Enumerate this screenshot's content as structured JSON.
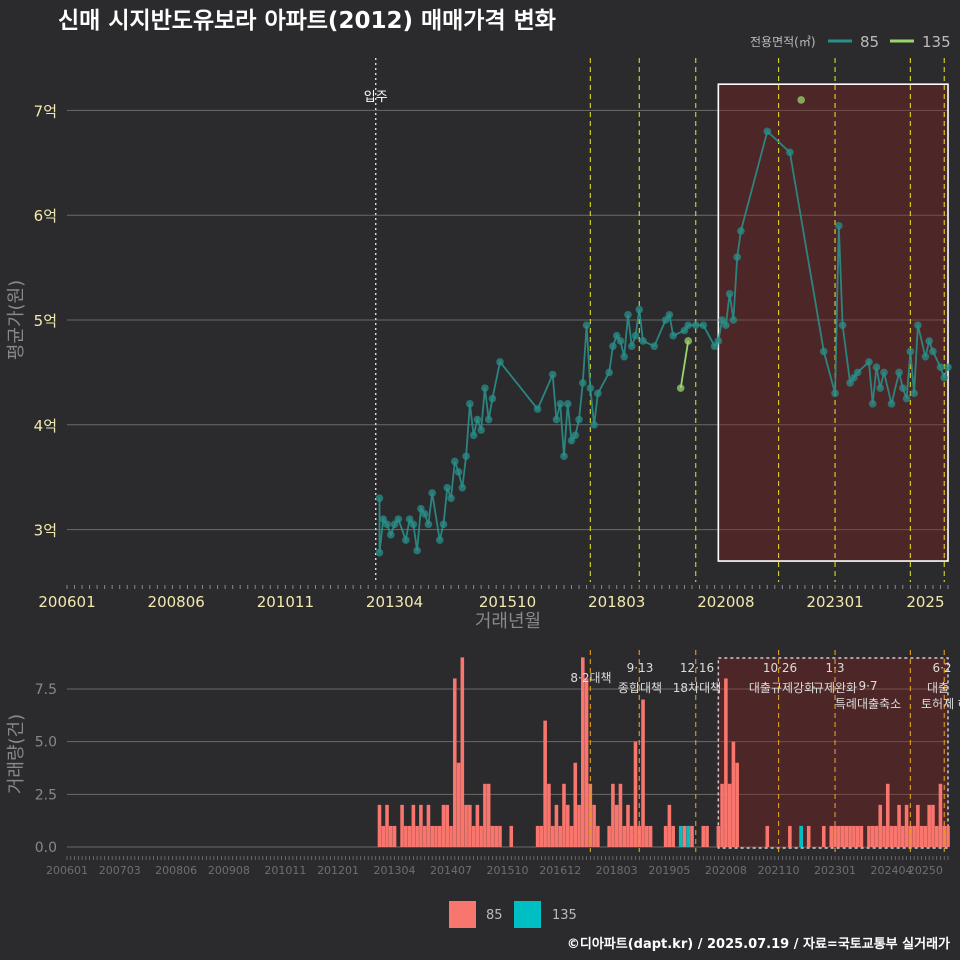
{
  "title": "신매 시지반도유보라 아파트(2012) 매매가격 변화",
  "legend": {
    "title": "전용면적(㎡)",
    "items": [
      {
        "label": "85",
        "color": "#2a8f8a"
      },
      {
        "label": "135",
        "color": "#9ad56a"
      }
    ]
  },
  "bottom_legend": {
    "items": [
      {
        "label": "85",
        "color": "#f8766d"
      },
      {
        "label": "135",
        "color": "#00bfc4"
      }
    ]
  },
  "footer": "©디아파트(dapt.kr) / 2025.07.19 / 자료=국토교통부 실거래가",
  "chart_data": [
    {
      "type": "line",
      "name": "price",
      "ylabel": "평균가(원)",
      "xlabel": "거래년월",
      "ylim": [
        2.5,
        7.5
      ],
      "yticks": [
        3,
        4,
        5,
        6,
        7
      ],
      "ytick_labels": [
        "3억",
        "4억",
        "5억",
        "6억",
        "7억"
      ],
      "xticks": [
        "200601",
        "200806",
        "201011",
        "201304",
        "201510",
        "201803",
        "202008",
        "202301",
        "2025"
      ],
      "grid": true,
      "movein": {
        "x": "2012-11",
        "label": "입주"
      },
      "policy_lines": [
        "2017-08",
        "2018-09",
        "2019-12",
        "2021-10",
        "2023-01",
        "2024-09",
        "2025-06"
      ],
      "highlight_box": {
        "from": "2020-06",
        "to": "2025-07",
        "ymin": 2.7,
        "ymax": 7.25
      },
      "series": [
        {
          "name": "85",
          "color": "#2a8f8a",
          "points": [
            [
              "2012-12",
              3.3
            ],
            [
              "2012-12",
              2.78
            ],
            [
              "2013-01",
              3.1
            ],
            [
              "2013-02",
              3.05
            ],
            [
              "2013-03",
              2.95
            ],
            [
              "2013-04",
              3.05
            ],
            [
              "2013-05",
              3.1
            ],
            [
              "2013-07",
              2.9
            ],
            [
              "2013-08",
              3.1
            ],
            [
              "2013-09",
              3.05
            ],
            [
              "2013-10",
              2.8
            ],
            [
              "2013-11",
              3.2
            ],
            [
              "2013-12",
              3.15
            ],
            [
              "2014-01",
              3.05
            ],
            [
              "2014-02",
              3.35
            ],
            [
              "2014-04",
              2.9
            ],
            [
              "2014-05",
              3.05
            ],
            [
              "2014-06",
              3.4
            ],
            [
              "2014-07",
              3.3
            ],
            [
              "2014-08",
              3.65
            ],
            [
              "2014-09",
              3.55
            ],
            [
              "2014-10",
              3.4
            ],
            [
              "2014-11",
              3.7
            ],
            [
              "2014-12",
              4.2
            ],
            [
              "2015-01",
              3.9
            ],
            [
              "2015-02",
              4.05
            ],
            [
              "2015-03",
              3.95
            ],
            [
              "2015-04",
              4.35
            ],
            [
              "2015-05",
              4.05
            ],
            [
              "2015-06",
              4.25
            ],
            [
              "2015-08",
              4.6
            ],
            [
              "2016-06",
              4.15
            ],
            [
              "2016-10",
              4.48
            ],
            [
              "2016-11",
              4.05
            ],
            [
              "2016-12",
              4.2
            ],
            [
              "2017-01",
              3.7
            ],
            [
              "2017-02",
              4.2
            ],
            [
              "2017-03",
              3.85
            ],
            [
              "2017-04",
              3.9
            ],
            [
              "2017-05",
              4.05
            ],
            [
              "2017-06",
              4.4
            ],
            [
              "2017-07",
              4.95
            ],
            [
              "2017-08",
              4.35
            ],
            [
              "2017-09",
              4.0
            ],
            [
              "2017-10",
              4.3
            ],
            [
              "2018-01",
              4.5
            ],
            [
              "2018-02",
              4.75
            ],
            [
              "2018-03",
              4.85
            ],
            [
              "2018-04",
              4.8
            ],
            [
              "2018-05",
              4.65
            ],
            [
              "2018-06",
              5.05
            ],
            [
              "2018-07",
              4.75
            ],
            [
              "2018-08",
              4.85
            ],
            [
              "2018-09",
              5.1
            ],
            [
              "2018-10",
              4.8
            ],
            [
              "2019-01",
              4.75
            ],
            [
              "2019-04",
              5.0
            ],
            [
              "2019-05",
              5.05
            ],
            [
              "2019-06",
              4.85
            ],
            [
              "2019-09",
              4.9
            ],
            [
              "2019-10",
              4.95
            ],
            [
              "2019-12",
              4.95
            ],
            [
              "2020-02",
              4.95
            ],
            [
              "2020-05",
              4.75
            ],
            [
              "2020-06",
              4.8
            ],
            [
              "2020-07",
              5.0
            ],
            [
              "2020-08",
              4.95
            ],
            [
              "2020-09",
              5.25
            ],
            [
              "2020-10",
              5.0
            ],
            [
              "2020-11",
              5.6
            ],
            [
              "2020-12",
              5.85
            ],
            [
              "2021-07",
              6.8
            ],
            [
              "2022-01",
              6.6
            ],
            [
              "2022-10",
              4.7
            ],
            [
              "2023-01",
              4.3
            ],
            [
              "2023-02",
              5.9
            ],
            [
              "2023-03",
              4.95
            ],
            [
              "2023-05",
              4.4
            ],
            [
              "2023-06",
              4.45
            ],
            [
              "2023-07",
              4.5
            ],
            [
              "2023-10",
              4.6
            ],
            [
              "2023-11",
              4.2
            ],
            [
              "2023-12",
              4.55
            ],
            [
              "2024-01",
              4.35
            ],
            [
              "2024-02",
              4.5
            ],
            [
              "2024-04",
              4.2
            ],
            [
              "2024-06",
              4.5
            ],
            [
              "2024-07",
              4.35
            ],
            [
              "2024-08",
              4.25
            ],
            [
              "2024-09",
              4.7
            ],
            [
              "2024-10",
              4.3
            ],
            [
              "2024-11",
              4.95
            ],
            [
              "2025-01",
              4.65
            ],
            [
              "2025-02",
              4.8
            ],
            [
              "2025-03",
              4.7
            ],
            [
              "2025-05",
              4.55
            ],
            [
              "2025-06",
              4.45
            ],
            [
              "2025-07",
              4.55
            ]
          ]
        },
        {
          "name": "135",
          "color": "#9ad56a",
          "points": [
            [
              "2019-08",
              4.35
            ],
            [
              "2019-10",
              4.8
            ],
            [
              "2022-04",
              7.1
            ]
          ]
        }
      ]
    },
    {
      "type": "bar",
      "name": "volume",
      "ylabel": "거래량(건)",
      "ylim": [
        0,
        9
      ],
      "yticks": [
        0,
        2.5,
        5,
        7.5
      ],
      "ytick_labels": [
        "0.0",
        "2.5",
        "5.0",
        "7.5"
      ],
      "xticks": [
        "200601",
        "200703",
        "200806",
        "200908",
        "201011",
        "201201",
        "201304",
        "201407",
        "201510",
        "201612",
        "201803",
        "201905",
        "202008",
        "202110",
        "202301",
        "202404",
        "20250"
      ],
      "policy_annotations": [
        {
          "x": "2017-08",
          "date": "8·2",
          "label": "대책"
        },
        {
          "x": "2018-09",
          "date": "9·13",
          "label": "종합대책"
        },
        {
          "x": "2019-12",
          "date": "12·16",
          "label": "18차대책"
        },
        {
          "x": "2021-10",
          "date": "10·26",
          "label": "대출규제강화"
        },
        {
          "x": "2023-01",
          "date": "1·3",
          "label": "규제완화"
        },
        {
          "x": "2024-09",
          "date": "9·7",
          "label": "특례대출축소"
        },
        {
          "x": "2025-06",
          "date": "6·2",
          "label": "대출"
        },
        {
          "x": "2025-07",
          "date": "",
          "label": "토허제 해"
        }
      ],
      "series": [
        {
          "name": "85",
          "color": "#f8766d",
          "bars": [
            [
              "2012-12",
              2
            ],
            [
              "2013-01",
              1
            ],
            [
              "2013-02",
              2
            ],
            [
              "2013-03",
              1
            ],
            [
              "2013-04",
              1
            ],
            [
              "2013-06",
              2
            ],
            [
              "2013-07",
              1
            ],
            [
              "2013-08",
              1
            ],
            [
              "2013-09",
              2
            ],
            [
              "2013-10",
              1
            ],
            [
              "2013-11",
              2
            ],
            [
              "2013-12",
              1
            ],
            [
              "2014-01",
              2
            ],
            [
              "2014-02",
              1
            ],
            [
              "2014-03",
              1
            ],
            [
              "2014-04",
              1
            ],
            [
              "2014-05",
              2
            ],
            [
              "2014-06",
              2
            ],
            [
              "2014-07",
              1
            ],
            [
              "2014-08",
              8
            ],
            [
              "2014-09",
              4
            ],
            [
              "2014-10",
              9
            ],
            [
              "2014-11",
              2
            ],
            [
              "2014-12",
              2
            ],
            [
              "2015-01",
              1
            ],
            [
              "2015-02",
              2
            ],
            [
              "2015-03",
              1
            ],
            [
              "2015-04",
              3
            ],
            [
              "2015-05",
              3
            ],
            [
              "2015-06",
              1
            ],
            [
              "2015-07",
              1
            ],
            [
              "2015-08",
              1
            ],
            [
              "2015-11",
              1
            ],
            [
              "2016-06",
              1
            ],
            [
              "2016-07",
              1
            ],
            [
              "2016-08",
              6
            ],
            [
              "2016-09",
              3
            ],
            [
              "2016-10",
              1
            ],
            [
              "2016-11",
              2
            ],
            [
              "2016-12",
              1
            ],
            [
              "2017-01",
              3
            ],
            [
              "2017-02",
              2
            ],
            [
              "2017-03",
              1
            ],
            [
              "2017-04",
              4
            ],
            [
              "2017-05",
              2
            ],
            [
              "2017-06",
              9
            ],
            [
              "2017-07",
              8
            ],
            [
              "2017-08",
              3
            ],
            [
              "2017-09",
              2
            ],
            [
              "2017-10",
              1
            ],
            [
              "2018-01",
              1
            ],
            [
              "2018-02",
              3
            ],
            [
              "2018-03",
              2
            ],
            [
              "2018-04",
              3
            ],
            [
              "2018-05",
              1
            ],
            [
              "2018-06",
              2
            ],
            [
              "2018-07",
              1
            ],
            [
              "2018-08",
              5
            ],
            [
              "2018-09",
              1
            ],
            [
              "2018-10",
              7
            ],
            [
              "2018-11",
              1
            ],
            [
              "2018-12",
              1
            ],
            [
              "2019-04",
              1
            ],
            [
              "2019-05",
              2
            ],
            [
              "2019-06",
              1
            ],
            [
              "2019-09",
              1
            ],
            [
              "2019-11",
              1
            ],
            [
              "2020-02",
              1
            ],
            [
              "2020-03",
              1
            ],
            [
              "2020-06",
              1
            ],
            [
              "2020-07",
              3
            ],
            [
              "2020-08",
              8
            ],
            [
              "2020-09",
              3
            ],
            [
              "2020-10",
              5
            ],
            [
              "2020-11",
              4
            ],
            [
              "2021-07",
              1
            ],
            [
              "2022-01",
              1
            ],
            [
              "2022-04",
              1
            ],
            [
              "2022-06",
              1
            ],
            [
              "2022-10",
              1
            ],
            [
              "2022-12",
              1
            ],
            [
              "2023-01",
              1
            ],
            [
              "2023-02",
              1
            ],
            [
              "2023-03",
              1
            ],
            [
              "2023-04",
              1
            ],
            [
              "2023-05",
              1
            ],
            [
              "2023-06",
              1
            ],
            [
              "2023-07",
              1
            ],
            [
              "2023-08",
              1
            ],
            [
              "2023-10",
              1
            ],
            [
              "2023-11",
              1
            ],
            [
              "2023-12",
              1
            ],
            [
              "2024-01",
              2
            ],
            [
              "2024-02",
              1
            ],
            [
              "2024-03",
              3
            ],
            [
              "2024-04",
              1
            ],
            [
              "2024-05",
              1
            ],
            [
              "2024-06",
              2
            ],
            [
              "2024-07",
              1
            ],
            [
              "2024-08",
              2
            ],
            [
              "2024-09",
              1
            ],
            [
              "2024-10",
              1
            ],
            [
              "2024-11",
              2
            ],
            [
              "2024-12",
              1
            ],
            [
              "2025-01",
              1
            ],
            [
              "2025-02",
              2
            ],
            [
              "2025-03",
              2
            ],
            [
              "2025-04",
              1
            ],
            [
              "2025-05",
              3
            ],
            [
              "2025-06",
              1
            ],
            [
              "2025-07",
              1
            ]
          ]
        },
        {
          "name": "135",
          "color": "#00bfc4",
          "bars": [
            [
              "2019-08",
              1
            ],
            [
              "2019-10",
              1
            ],
            [
              "2022-04",
              1
            ]
          ]
        }
      ]
    }
  ]
}
